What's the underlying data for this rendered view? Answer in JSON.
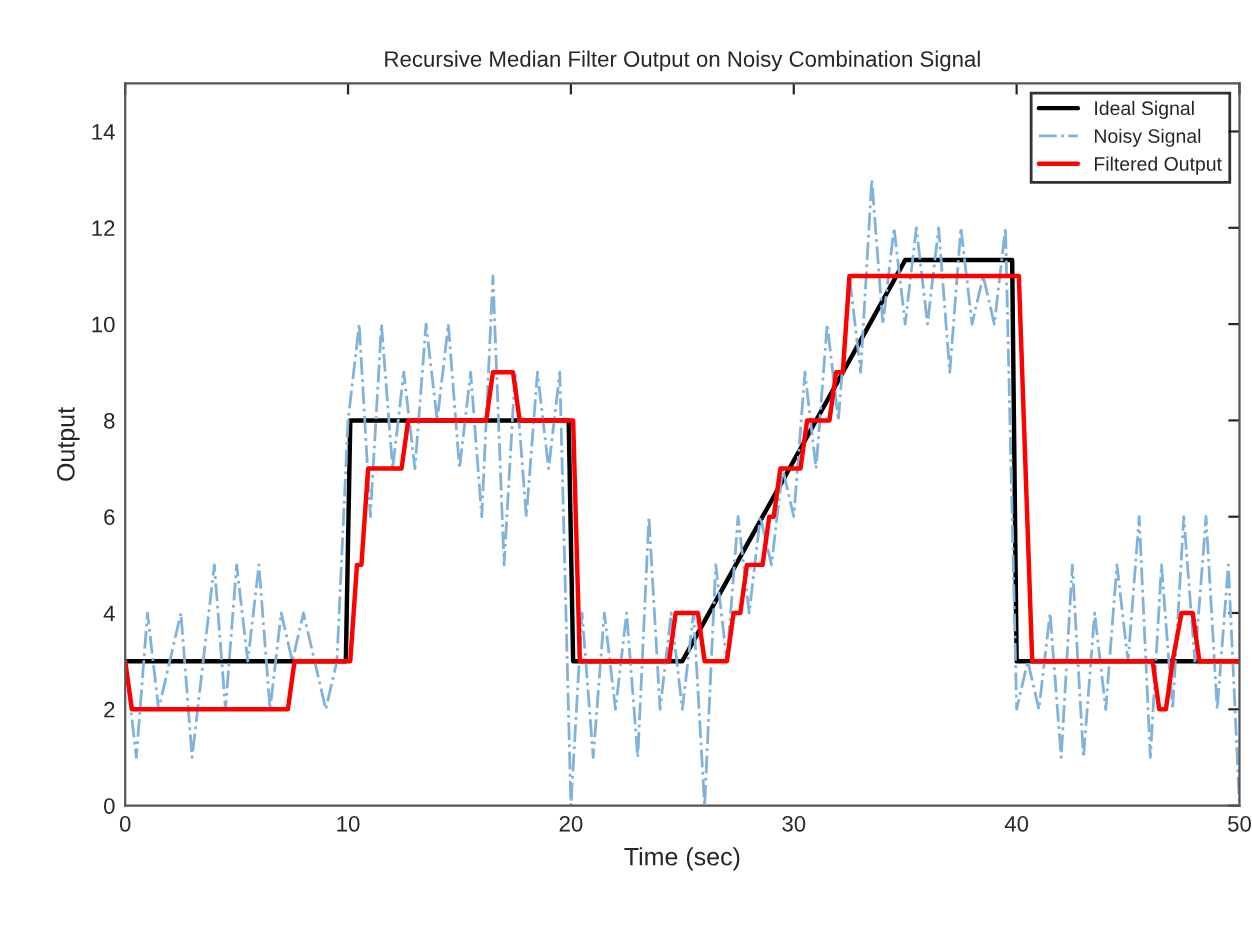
{
  "chart_data": {
    "type": "line",
    "title": "Recursive Median Filter Output on Noisy Combination Signal",
    "xlabel": "Time (sec)",
    "ylabel": "Output",
    "xlim": [
      0,
      50
    ],
    "ylim": [
      0,
      15
    ],
    "xticks": [
      0,
      10,
      20,
      30,
      40,
      50
    ],
    "yticks": [
      0,
      2,
      4,
      6,
      8,
      10,
      12,
      14
    ],
    "grid": false,
    "legend": "top right",
    "series": [
      {
        "name": "Ideal Signal",
        "color": "#000000",
        "line_style": "solid",
        "x": [
          0,
          9.9,
          10.1,
          19.9,
          20.1,
          25,
          35,
          39.8,
          40,
          50
        ],
        "values": [
          3,
          3,
          8,
          8,
          3,
          3,
          11.33,
          11.33,
          3,
          3
        ]
      },
      {
        "name": "Noisy Signal",
        "color": "#7fb2dc",
        "line_style": "dashed",
        "x": [
          0,
          0.5,
          1,
          1.5,
          2,
          2.5,
          3,
          3.5,
          4,
          4.5,
          5,
          5.5,
          6,
          6.5,
          7,
          7.5,
          8,
          8.5,
          9,
          9.5,
          10,
          10.5,
          11,
          11.5,
          12,
          12.5,
          13,
          13.5,
          14,
          14.5,
          15,
          15.5,
          16,
          16.5,
          17,
          17.5,
          18,
          18.5,
          19,
          19.5,
          20,
          20.5,
          21,
          21.5,
          22,
          22.5,
          23,
          23.5,
          24,
          24.5,
          25,
          25.5,
          26,
          26.5,
          27,
          27.5,
          28,
          28.5,
          29,
          29.5,
          30,
          30.5,
          31,
          31.5,
          32,
          32.5,
          33,
          33.5,
          34,
          34.5,
          35,
          35.5,
          36,
          36.5,
          37,
          37.5,
          38,
          38.5,
          39,
          39.5,
          40,
          40.5,
          41,
          41.5,
          42,
          42.5,
          43,
          43.5,
          44,
          44.5,
          45,
          45.5,
          46,
          46.5,
          47,
          47.5,
          48,
          48.5,
          49,
          49.5,
          50
        ],
        "values": [
          3,
          1,
          4,
          2,
          3,
          4,
          1,
          3,
          5,
          2,
          5,
          3,
          5,
          2,
          4,
          3,
          4,
          3,
          2,
          3,
          8,
          10,
          6,
          10,
          7,
          9,
          7,
          10,
          8,
          10,
          7,
          9,
          6,
          11,
          5,
          9,
          6,
          9,
          7,
          9,
          0,
          4,
          1,
          4,
          2,
          4,
          1,
          6,
          2,
          4,
          2,
          4,
          0,
          5,
          3,
          6,
          4,
          6,
          5,
          7,
          6,
          9,
          7,
          10,
          8,
          11,
          9,
          13,
          10,
          12,
          10,
          12,
          10,
          12,
          9,
          12,
          10,
          11,
          10,
          12,
          2,
          3,
          2,
          4,
          1,
          5,
          1,
          4,
          2,
          5,
          3,
          6,
          1,
          5,
          2,
          6,
          3,
          6,
          2,
          5,
          0
        ]
      },
      {
        "name": "Filtered Output",
        "color": "#ff0000",
        "line_style": "solid",
        "x": [
          0,
          0.3,
          7.3,
          7.6,
          10.1,
          10.4,
          10.6,
          10.9,
          12.4,
          12.7,
          16.2,
          16.5,
          17.4,
          17.7,
          20.1,
          20.4,
          24.4,
          24.7,
          25.7,
          26.0,
          27.0,
          27.3,
          27.6,
          27.9,
          28.6,
          28.9,
          29.1,
          29.4,
          30.3,
          30.6,
          31.6,
          31.9,
          32.2,
          32.5,
          33.9,
          34.2,
          40.1,
          40.7,
          46.1,
          46.4,
          46.7,
          47.0,
          47.4,
          47.9,
          48.2,
          50
        ],
        "values": [
          3,
          2,
          2,
          3,
          3,
          5,
          5,
          7,
          7,
          8,
          8,
          9,
          9,
          8,
          8,
          3,
          3,
          4,
          4,
          3,
          3,
          4,
          4,
          5,
          5,
          6,
          6,
          7,
          7,
          8,
          8,
          9,
          9,
          11,
          11,
          11,
          11,
          3,
          3,
          2,
          2,
          3,
          4,
          4,
          3,
          3
        ]
      }
    ]
  }
}
